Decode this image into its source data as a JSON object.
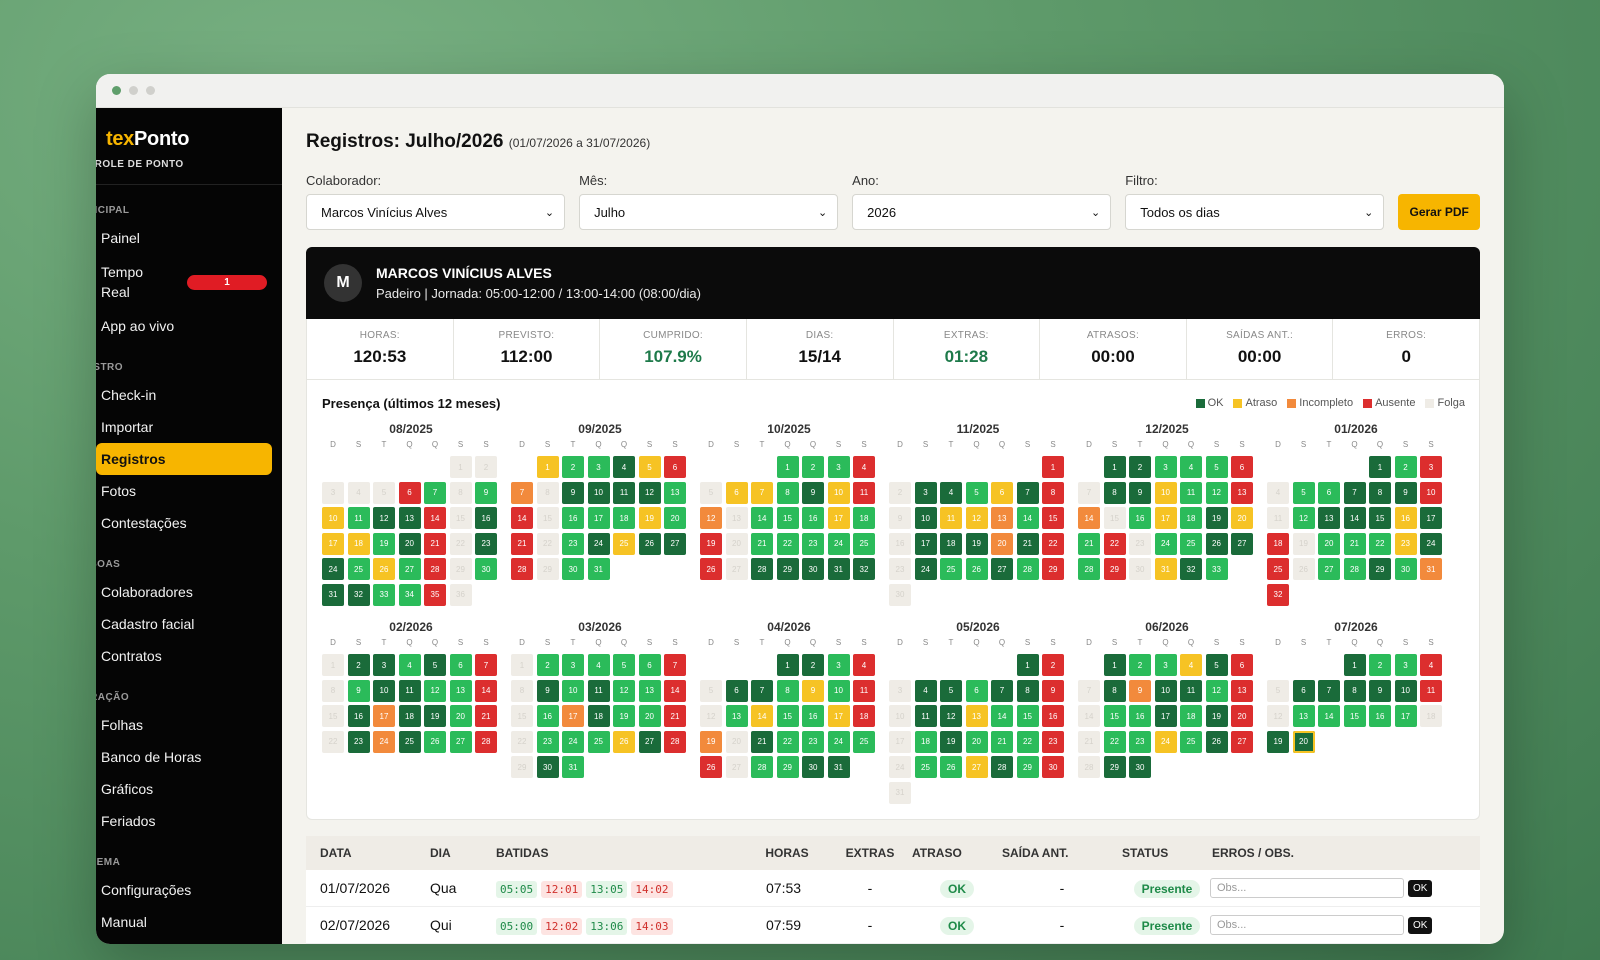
{
  "window_dots": [
    "#5f9e6b",
    "#d0d0cc",
    "#d0d0cc"
  ],
  "brand": {
    "part1": "tex",
    "part2": "Ponto",
    "subtitle": "TROLE DE PONTO"
  },
  "sidebar": {
    "sections": [
      {
        "title": "NCIPAL",
        "items": [
          {
            "label": "Painel"
          },
          {
            "label": "Tempo Real",
            "badge": "1"
          },
          {
            "label": "App ao vivo"
          }
        ]
      },
      {
        "title": "ISTRO",
        "items": [
          {
            "label": "Check-in"
          },
          {
            "label": "Importar"
          },
          {
            "label": "Registros",
            "active": true
          },
          {
            "label": "Fotos"
          },
          {
            "label": "Contestações"
          }
        ]
      },
      {
        "title": "SOAS",
        "items": [
          {
            "label": "Colaboradores"
          },
          {
            "label": "Cadastro facial"
          },
          {
            "label": "Contratos"
          }
        ]
      },
      {
        "title": "RAÇÃO",
        "items": [
          {
            "label": "Folhas"
          },
          {
            "label": "Banco de Horas"
          },
          {
            "label": "Gráficos"
          },
          {
            "label": "Feriados"
          }
        ]
      },
      {
        "title": "TEMA",
        "items": [
          {
            "label": "Configurações"
          },
          {
            "label": "Manual"
          }
        ]
      }
    ]
  },
  "page": {
    "title": "Registros: Julho/2026",
    "range": "(01/07/2026 a 31/07/2026)"
  },
  "filters": [
    {
      "label": "Colaborador:",
      "value": "Marcos Vinícius Alves"
    },
    {
      "label": "Mês:",
      "value": "Julho"
    },
    {
      "label": "Ano:",
      "value": "2026"
    },
    {
      "label": "Filtro:",
      "value": "Todos os dias"
    }
  ],
  "pdf_button": "Gerar PDF",
  "employee": {
    "initial": "M",
    "name": "MARCOS VINÍCIUS ALVES",
    "role": "Padeiro | Jornada: 05:00-12:00 / 13:00-14:00 (08:00/dia)"
  },
  "stats": [
    {
      "label": "HORAS:",
      "value": "120:53"
    },
    {
      "label": "PREVISTO:",
      "value": "112:00"
    },
    {
      "label": "CUMPRIDO:",
      "value": "107.9%",
      "green": true
    },
    {
      "label": "DIAS:",
      "value": "15/14"
    },
    {
      "label": "EXTRAS:",
      "value": "01:28",
      "green": true
    },
    {
      "label": "ATRASOS:",
      "value": "00:00"
    },
    {
      "label": "SAÍDAS ANT.:",
      "value": "00:00"
    },
    {
      "label": "ERROS:",
      "value": "0"
    }
  ],
  "presence": {
    "title": "Presença (últimos 12 meses)",
    "legend": [
      {
        "label": "OK",
        "color": "#1a6b3a"
      },
      {
        "label": "Atraso",
        "color": "#f6c324"
      },
      {
        "label": "Incompleto",
        "color": "#f28a3c"
      },
      {
        "label": "Ausente",
        "color": "#dc2e2e"
      },
      {
        "label": "Folga",
        "color": "#efece6"
      }
    ],
    "weekdays": [
      "D",
      "S",
      "T",
      "Q",
      "Q",
      "S",
      "S"
    ],
    "months": [
      {
        "label": "08/2025",
        "offset": 5,
        "days": "fofofofofoauokfookatokdkdkaufodkatatokdkaufodkdkokatokaufookdkdkokokaufo"
      },
      {
        "label": "09/2025",
        "offset": 1,
        "days": "atokokdkatauiofodkdkdkdkokaufookokokatokaufookdkatdkdkaufookok"
      },
      {
        "label": "10/2025",
        "offset": 3,
        "days": "okokokaufoatatokdkatauiofookokokatokaufookokokokokaufodkdkdkdkdk"
      },
      {
        "label": "11/2025",
        "offset": 6,
        "days": "aufodkdkokatdkaufodkatatinokaufodkdkdkindkaufodkokokdkokaufo"
      },
      {
        "label": "12/2025",
        "offset": 1,
        "days": "dkdkokokokaufodkdkatokokauiofookatokdkatokaufookokdkdkokaufoatdkok"
      },
      {
        "label": "01/2026",
        "offset": 4,
        "days": "dkokaufookokdkdkdkaufookdkdkdkatdkaufookokokatdkaufookokdkokinau"
      },
      {
        "label": "02/2026",
        "offset": 0,
        "days": "fodkdkokdkokaufookdkdkokokaufodkindkdkokaufodkindkokokau"
      },
      {
        "label": "03/2026",
        "offset": 0,
        "days": "fookokokokokaufodkokdkokokaufookindkokokaufookokokatdkaufodkok"
      },
      {
        "label": "04/2026",
        "offset": 3,
        "days": "dkdkokaufodkdkokatokaufookatokokatauiofodkokokokokaufookokdkdk"
      },
      {
        "label": "05/2026",
        "offset": 5,
        "days": "dkaufodkdkokdkdkaufodkdkatokokaufookdkokokokaufookokatdkokaufo"
      },
      {
        "label": "06/2026",
        "offset": 1,
        "days": "dkokokatdkaufodkindkdkokaufookokdkokdkaufookokatokdkaufodkdk"
      },
      {
        "label": "07/2026",
        "offset": 3,
        "days": "dkokokaufodkdkdkdkdkaufookokokokokfodkto"
      }
    ]
  },
  "table": {
    "headers": [
      "DATA",
      "DIA",
      "BATIDAS",
      "HORAS",
      "EXTRAS",
      "ATRASO",
      "SAÍDA ANT.",
      "STATUS",
      "ERROS / OBS."
    ],
    "rows": [
      {
        "date": "01/07/2026",
        "day": "Qua",
        "punches": [
          "05:05",
          "12:01",
          "13:05",
          "14:02"
        ],
        "hours": "07:53",
        "extras": "-",
        "delay": "OK",
        "early": "-",
        "status": "Presente",
        "obs": "Obs...",
        "btn": "OK"
      },
      {
        "date": "02/07/2026",
        "day": "Qui",
        "punches": [
          "05:00",
          "12:02",
          "13:06",
          "14:03"
        ],
        "hours": "07:59",
        "extras": "-",
        "delay": "OK",
        "early": "-",
        "status": "Presente",
        "obs": "Obs...",
        "btn": "OK"
      }
    ]
  }
}
